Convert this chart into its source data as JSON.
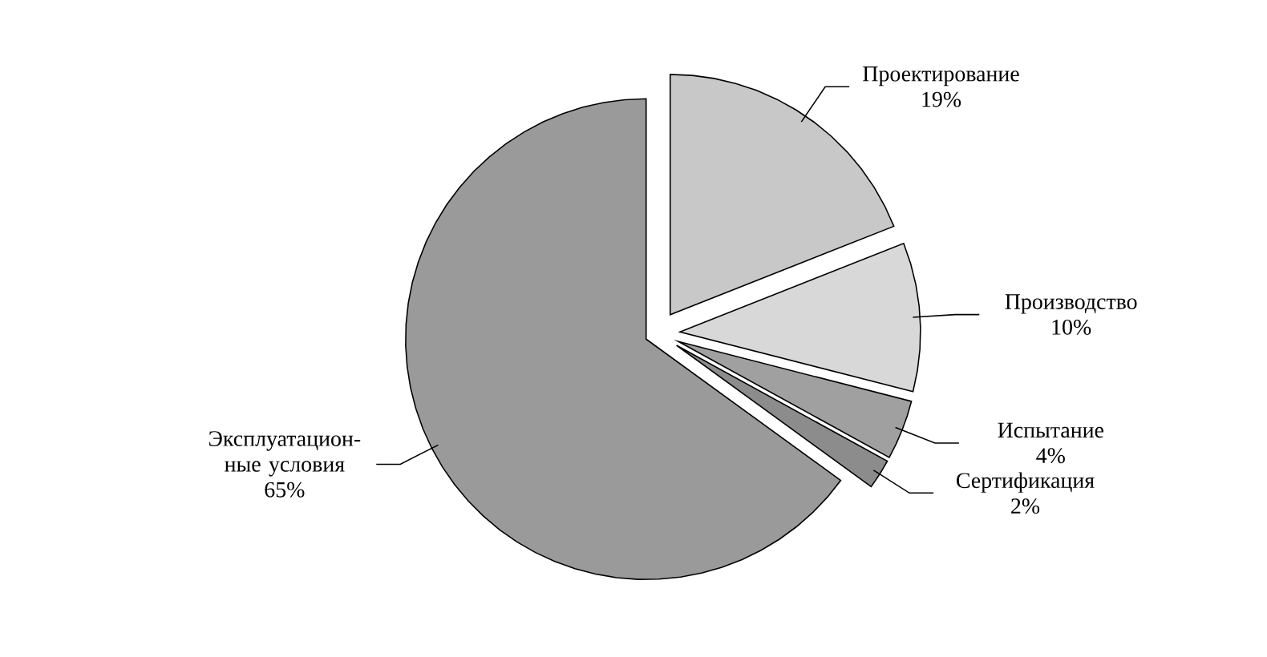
{
  "chart_data": {
    "type": "pie",
    "categories": [
      "Проектирование",
      "Производство",
      "Испытание",
      "Сертификация",
      "Эксплуатацион-ные условия"
    ],
    "values": [
      19,
      10,
      4,
      2,
      65
    ],
    "colors": [
      "#c8c8c8",
      "#d8d8d8",
      "#a0a0a0",
      "#8c8c8c",
      "#9a9a9a"
    ],
    "value_labels": [
      "19%",
      "10%",
      "4%",
      "2%",
      "65%"
    ]
  }
}
